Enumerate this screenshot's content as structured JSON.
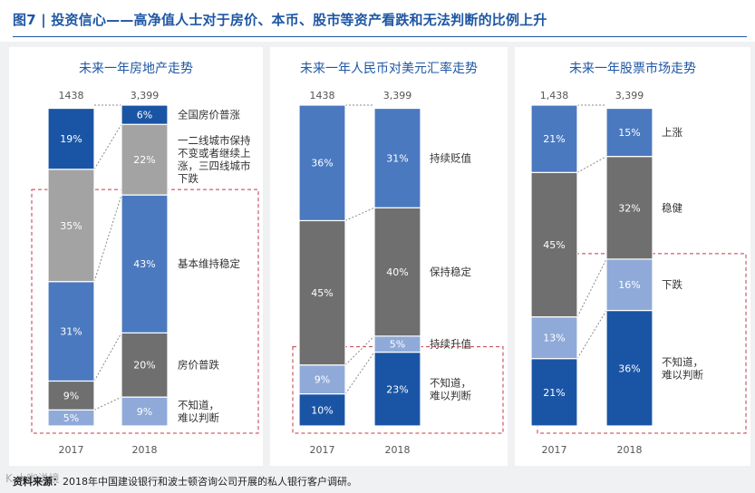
{
  "figure_title": "图7 | 投资信心——高净值人士对于房价、本币、股市等资产看跌和无法判断的比例上升",
  "source_label": "资料来源：",
  "source_text": "2018年中国建设银行和波士顿咨询公司开展的私人银行客户调研。",
  "watermark_text": "K 大咖说境",
  "colors": {
    "title_blue": "#1f57a4",
    "cat_up": "#4a79bf",
    "cat_stable": "#6f6f6f",
    "cat_stable_light": "#a3a3a3",
    "cat_down": "#8faad8",
    "cat_unknown": "#1a55a5",
    "dashed_box": "#c0394b",
    "connector": "#8a8a8a"
  },
  "chart_data": [
    {
      "type": "bar",
      "stacked": true,
      "title": "未来一年房地产走势",
      "categories": [
        "2017",
        "2018"
      ],
      "sample_sizes": [
        "1438",
        "3,399"
      ],
      "series": [
        {
          "name": "不知道，难以判断",
          "values": [
            5,
            9
          ],
          "color": "#8faad8",
          "labels": [
            "5%",
            "9%"
          ]
        },
        {
          "name": "房价普跌",
          "values": [
            9,
            20
          ],
          "color": "#6f6f6f",
          "labels": [
            "9%",
            "20%"
          ]
        },
        {
          "name": "基本维持稳定",
          "values": [
            31,
            43
          ],
          "color": "#4a79bf",
          "labels": [
            "31%",
            "43%"
          ]
        },
        {
          "name": "一二线城市保持不变或者继续上涨，三四线城市下跌",
          "values": [
            35,
            22
          ],
          "color": "#a3a3a3",
          "labels": [
            "35%",
            "22%"
          ]
        },
        {
          "name": "全国房价普涨",
          "values": [
            19,
            6
          ],
          "color": "#1a55a5",
          "labels": [
            "19%",
            "6%"
          ]
        }
      ],
      "legend_labels": [
        {
          "series": 4,
          "lines": [
            "全国房价普涨"
          ]
        },
        {
          "series": 3,
          "lines": [
            "一二线城市保持",
            "不变或者继续上",
            "涨，三四线城市",
            "下跌"
          ]
        },
        {
          "series": 2,
          "lines": [
            "基本维持稳定"
          ]
        },
        {
          "series": 1,
          "lines": [
            "房价普跌"
          ]
        },
        {
          "series": 0,
          "lines": [
            "不知道，",
            "难以判断"
          ]
        }
      ],
      "highlight_series": [
        0,
        1,
        2
      ],
      "ylim": [
        0,
        100
      ]
    },
    {
      "type": "bar",
      "stacked": true,
      "title": "未来一年人民币对美元汇率走势",
      "categories": [
        "2017",
        "2018"
      ],
      "sample_sizes": [
        "1438",
        "3,399"
      ],
      "series": [
        {
          "name": "不知道，难以判断",
          "values": [
            10,
            23
          ],
          "color": "#1a55a5",
          "labels": [
            "10%",
            "23%"
          ]
        },
        {
          "name": "持续升值",
          "values": [
            9,
            5
          ],
          "color": "#8faad8",
          "labels": [
            "9%",
            "5%"
          ]
        },
        {
          "name": "保持稳定",
          "values": [
            45,
            40
          ],
          "color": "#6f6f6f",
          "labels": [
            "45%",
            "40%"
          ]
        },
        {
          "name": "持续贬值",
          "values": [
            36,
            31
          ],
          "color": "#4a79bf",
          "labels": [
            "36%",
            "31%"
          ]
        }
      ],
      "legend_labels": [
        {
          "series": 3,
          "lines": [
            "持续贬值"
          ]
        },
        {
          "series": 2,
          "lines": [
            "保持稳定"
          ]
        },
        {
          "series": 1,
          "lines": [
            "持续升值"
          ]
        },
        {
          "series": 0,
          "lines": [
            "不知道，",
            "难以判断"
          ]
        }
      ],
      "highlight_series": [
        0
      ],
      "ylim": [
        0,
        100
      ]
    },
    {
      "type": "bar",
      "stacked": true,
      "title": "未来一年股票市场走势",
      "categories": [
        "2017",
        "2018"
      ],
      "sample_sizes": [
        "1,438",
        "3,399"
      ],
      "series": [
        {
          "name": "不知道，难以判断",
          "values": [
            21,
            36
          ],
          "color": "#1a55a5",
          "labels": [
            "21%",
            "36%"
          ]
        },
        {
          "name": "下跌",
          "values": [
            13,
            16
          ],
          "color": "#8faad8",
          "labels": [
            "13%",
            "16%"
          ]
        },
        {
          "name": "稳健",
          "values": [
            45,
            32
          ],
          "color": "#6f6f6f",
          "labels": [
            "45%",
            "32%"
          ]
        },
        {
          "name": "上涨",
          "values": [
            21,
            15
          ],
          "color": "#4a79bf",
          "labels": [
            "21%",
            "15%"
          ]
        }
      ],
      "legend_labels": [
        {
          "series": 3,
          "lines": [
            "上涨"
          ]
        },
        {
          "series": 2,
          "lines": [
            "稳健"
          ]
        },
        {
          "series": 1,
          "lines": [
            "下跌"
          ]
        },
        {
          "series": 0,
          "lines": [
            "不知道，",
            "难以判断"
          ]
        }
      ],
      "highlight_series": [
        0,
        1
      ],
      "ylim": [
        0,
        100
      ]
    }
  ]
}
